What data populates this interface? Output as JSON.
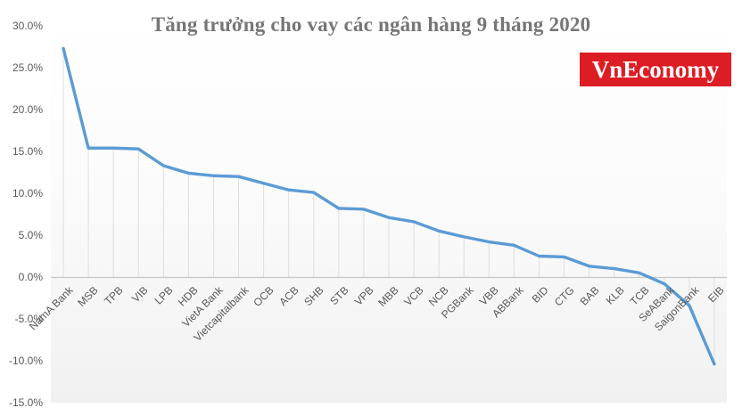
{
  "title": "Tăng trưởng cho vay các ngân hàng 9 tháng 2020",
  "logo": {
    "text": "VnEconomy",
    "bg_color": "#DD1D24",
    "text_color": "#FFFFFF"
  },
  "chart_data": {
    "type": "line",
    "title": "Tăng trưởng cho vay các ngân hàng 9 tháng 2020",
    "categories": [
      "NamA Bank",
      "MSB",
      "TPB",
      "VIB",
      "LPB",
      "HDB",
      "VietA Bank",
      "Vietcapitalbank",
      "OCB",
      "ACB",
      "SHB",
      "STB",
      "VPB",
      "MBB",
      "VCB",
      "NCB",
      "PGBank",
      "VBB",
      "ABBank",
      "BID",
      "CTG",
      "BAB",
      "KLB",
      "TCB",
      "SeABank",
      "SaigonBank",
      "EIB"
    ],
    "values": [
      27.3,
      15.4,
      15.4,
      15.3,
      13.3,
      12.4,
      12.1,
      12.0,
      11.2,
      10.4,
      10.1,
      8.2,
      8.1,
      7.1,
      6.6,
      5.5,
      4.8,
      4.2,
      3.8,
      2.5,
      2.4,
      1.3,
      1.0,
      0.5,
      -0.8,
      -3.4,
      -10.4
    ],
    "value_unit": "%",
    "y_ticks": [
      "30.0%",
      "25.0%",
      "20.0%",
      "15.0%",
      "10.0%",
      "5.0%",
      "0.0%",
      "-5.0%",
      "-10.0%",
      "-15.0%"
    ],
    "y_tick_values": [
      30,
      25,
      20,
      15,
      10,
      5,
      0,
      -5,
      -10,
      -15
    ],
    "ylim": [
      -15,
      30
    ],
    "xlabel": "",
    "ylabel": "",
    "legend": "none",
    "grid": "vertical-drop-lines",
    "series_color": "#5B9BD5",
    "drop_line_color": "#dedede",
    "axis_line_color": "#c6c6c6",
    "tick_label_color": "#595959"
  }
}
